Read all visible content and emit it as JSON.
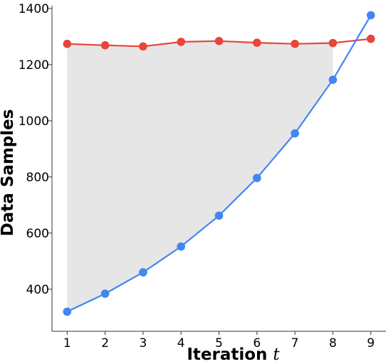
{
  "chart_data": {
    "type": "line",
    "x": [
      1,
      2,
      3,
      4,
      5,
      6,
      7,
      8,
      9
    ],
    "series": [
      {
        "values": [
          1274,
          1269,
          1265,
          1281,
          1284,
          1278,
          1274,
          1277,
          1292
        ],
        "color": "#e8453c"
      },
      {
        "values": [
          320,
          384,
          460,
          552,
          662,
          796,
          955,
          1146,
          1376
        ],
        "color": "#4285f4"
      }
    ],
    "fill_between": {
      "x_range": [
        1,
        8
      ],
      "color": "#e6e6e6"
    },
    "xlabel": "Iteration ",
    "xlabel_italic": "t",
    "ylabel": "Data Samples",
    "xlim": [
      0.6,
      9.4
    ],
    "ylim": [
      250,
      1410
    ],
    "xticks": [
      1,
      2,
      3,
      4,
      5,
      6,
      7,
      8,
      9
    ],
    "yticks": [
      400,
      600,
      800,
      1000,
      1200,
      1400
    ],
    "grid": false,
    "legend": "none"
  }
}
